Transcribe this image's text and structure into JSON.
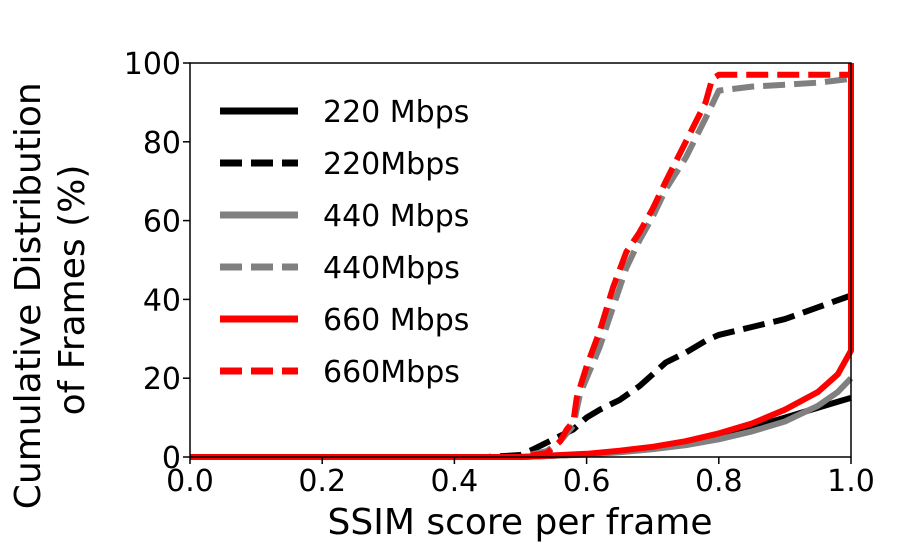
{
  "chart_data": {
    "type": "line",
    "xlabel": "SSIM score per frame",
    "ylabel_lines": [
      "Cumulative Distribution",
      "of Frames (%)"
    ],
    "xlim": [
      0.0,
      1.0
    ],
    "ylim": [
      0,
      100
    ],
    "xticks": [
      "0.0",
      "0.2",
      "0.4",
      "0.6",
      "0.8",
      "1.0"
    ],
    "yticks": [
      "0",
      "20",
      "40",
      "60",
      "80",
      "100"
    ],
    "legend_position": "upper-left",
    "grid": false,
    "series": [
      {
        "name": "220 Mbps",
        "color": "#000000",
        "dash": "solid",
        "x": [
          0.0,
          0.5,
          0.55,
          0.6,
          0.65,
          0.7,
          0.75,
          0.8,
          0.85,
          0.9,
          0.95,
          0.98,
          1.0
        ],
        "y": [
          0,
          0,
          0.3,
          0.7,
          1.5,
          2.5,
          3.8,
          5.5,
          7.5,
          10,
          12.5,
          14,
          15
        ]
      },
      {
        "name": "220Mbps",
        "color": "#000000",
        "dash": "dashed",
        "x": [
          0.0,
          0.45,
          0.5,
          0.52,
          0.55,
          0.58,
          0.6,
          0.62,
          0.65,
          0.68,
          0.7,
          0.72,
          0.75,
          0.78,
          0.8,
          0.85,
          0.9,
          0.95,
          1.0
        ],
        "y": [
          0,
          0,
          0.5,
          2,
          4.5,
          7,
          10,
          12,
          14.5,
          18,
          21,
          24,
          26.5,
          29.5,
          31,
          33,
          35,
          38,
          41
        ]
      },
      {
        "name": "440 Mbps",
        "color": "#808080",
        "dash": "solid",
        "x": [
          0.0,
          0.5,
          0.55,
          0.6,
          0.65,
          0.7,
          0.75,
          0.8,
          0.85,
          0.9,
          0.95,
          0.98,
          1.0
        ],
        "y": [
          0,
          0,
          0.3,
          0.6,
          1.2,
          2,
          3,
          4.5,
          6.5,
          9,
          13,
          16.5,
          20
        ]
      },
      {
        "name": "440Mbps",
        "color": "#808080",
        "dash": "dashed",
        "x": [
          0.0,
          0.5,
          0.54,
          0.56,
          0.58,
          0.59,
          0.6,
          0.62,
          0.64,
          0.66,
          0.68,
          0.7,
          0.72,
          0.75,
          0.78,
          0.8,
          0.85,
          0.9,
          0.95,
          1.0
        ],
        "y": [
          0,
          0,
          1.5,
          4,
          8,
          16,
          20,
          28,
          38,
          48,
          55,
          61,
          68,
          76,
          86,
          93,
          94,
          94.5,
          95,
          96
        ]
      },
      {
        "name": "660 Mbps",
        "color": "#ff0000",
        "dash": "solid",
        "x": [
          0.0,
          0.5,
          0.55,
          0.6,
          0.65,
          0.7,
          0.75,
          0.8,
          0.85,
          0.9,
          0.95,
          0.98,
          1.0,
          1.0
        ],
        "y": [
          0,
          0,
          0.4,
          0.8,
          1.6,
          2.6,
          4,
          6,
          8.5,
          12,
          16.5,
          21,
          27,
          100
        ]
      },
      {
        "name": "660Mbps",
        "color": "#ff0000",
        "dash": "dashed",
        "x": [
          0.0,
          0.5,
          0.54,
          0.56,
          0.57,
          0.58,
          0.585,
          0.6,
          0.62,
          0.64,
          0.66,
          0.68,
          0.7,
          0.72,
          0.75,
          0.78,
          0.79,
          0.8,
          0.85,
          0.9,
          0.95,
          1.0
        ],
        "y": [
          0,
          0,
          1,
          4,
          7,
          9,
          15,
          23,
          32,
          43,
          52,
          57,
          63,
          70,
          80,
          90,
          96,
          97,
          97,
          97,
          97,
          97
        ]
      }
    ]
  }
}
